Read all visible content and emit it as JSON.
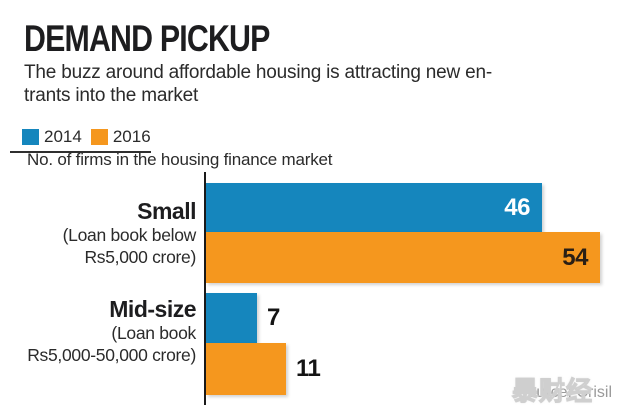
{
  "header": {
    "title": "DEMAND PICKUP",
    "subtitle_line1": "The buzz around affordable housing is attracting new en-",
    "subtitle_line2": "trants into the market"
  },
  "legend": {
    "items": [
      {
        "label": "2014",
        "color": "#1586BD"
      },
      {
        "label": "2016",
        "color": "#F5971E"
      }
    ]
  },
  "axis_note": "No. of firms in the housing finance market",
  "chart_data": {
    "type": "bar",
    "orientation": "horizontal",
    "title": "DEMAND PICKUP",
    "xlabel": "No. of firms in the housing finance market",
    "xlim": [
      0,
      56
    ],
    "grid": false,
    "legend_position": "top-left",
    "value_labels": true,
    "categories": [
      {
        "name": "Small",
        "detail_lines": [
          "(Loan book below",
          "Rs5,000 crore)"
        ]
      },
      {
        "name": "Mid-size",
        "detail_lines": [
          "(Loan book",
          "Rs5,000-50,000 crore)"
        ]
      }
    ],
    "series": [
      {
        "name": "2014",
        "color": "#1586BD",
        "values": [
          46,
          7
        ]
      },
      {
        "name": "2016",
        "color": "#F5971E",
        "values": [
          54,
          11
        ]
      }
    ]
  },
  "source": {
    "label": "Source: Crisil",
    "watermark": "暴财经"
  },
  "colors": {
    "blue": "#1586BD",
    "orange": "#F5971E",
    "text_dark": "#1d1d1f",
    "text_body": "#2b2b2b",
    "value_on_blue": "#ffffff",
    "value_on_orange": "#2a1f15",
    "source_gray": "#9a9a9a"
  }
}
